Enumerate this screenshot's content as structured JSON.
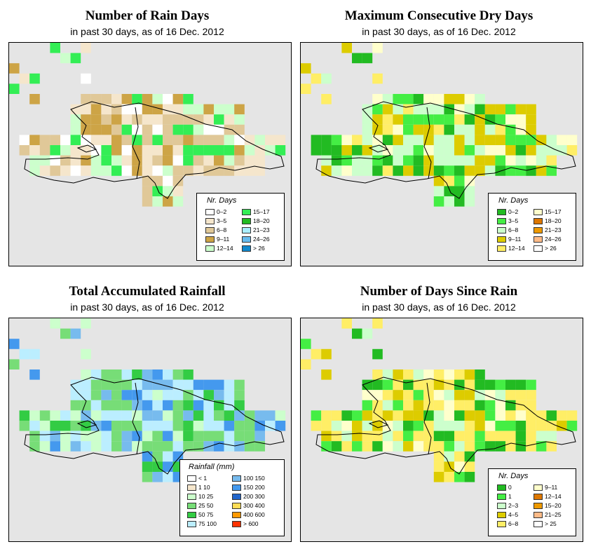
{
  "panels": [
    {
      "id": "rain-days",
      "title": "Number of Rain Days",
      "subtitle": "in past 30 days, as of  16 Dec. 2012",
      "legend": {
        "title": "Nr. Days",
        "items": [
          {
            "label": "0–2",
            "color": "#ffffff"
          },
          {
            "label": "3–5",
            "color": "#f5e6cc"
          },
          {
            "label": "6–8",
            "color": "#e0c898"
          },
          {
            "label": "9–11",
            "color": "#cda446"
          },
          {
            "label": "12–14",
            "color": "#ccffcc"
          },
          {
            "label": "15–17",
            "color": "#33ee55"
          },
          {
            "label": "18–20",
            "color": "#22bb22"
          },
          {
            "label": "21–23",
            "color": "#aaeeff"
          },
          {
            "label": "24–26",
            "color": "#66bbee"
          },
          {
            "label": "> 26",
            "color": "#1188cc"
          }
        ]
      }
    },
    {
      "id": "dry-days",
      "title": "Maximum Consecutive Dry Days",
      "subtitle": "in past 30 days, as of  16 Dec. 2012",
      "legend": {
        "title": "Nr. Days",
        "items": [
          {
            "label": "0–2",
            "color": "#22bb22"
          },
          {
            "label": "3–5",
            "color": "#44ee44"
          },
          {
            "label": "6–8",
            "color": "#ccffcc"
          },
          {
            "label": "9–11",
            "color": "#ddcc00"
          },
          {
            "label": "12–14",
            "color": "#ffee66"
          },
          {
            "label": "15–17",
            "color": "#ffffcc"
          },
          {
            "label": "18–20",
            "color": "#dd7700"
          },
          {
            "label": "21–23",
            "color": "#ee9900"
          },
          {
            "label": "24–26",
            "color": "#ffbb88"
          },
          {
            "label": "> 26",
            "color": "#ffffff"
          }
        ]
      }
    },
    {
      "id": "rainfall",
      "title": "Total Accumulated Rainfall",
      "subtitle": "in past 30 days, as of  16 Dec. 2012",
      "legend": {
        "title": "Rainfall (mm)",
        "items": [
          {
            "label": "< 1",
            "color": "#ffffff"
          },
          {
            "label": "1   10",
            "color": "#f5e6cc"
          },
          {
            "label": "10   25",
            "color": "#ccffcc"
          },
          {
            "label": "25   50",
            "color": "#77dd77"
          },
          {
            "label": "50   75",
            "color": "#33cc44"
          },
          {
            "label": "75  100",
            "color": "#bbeeff"
          },
          {
            "label": "100  150",
            "color": "#77bbee"
          },
          {
            "label": "150  200",
            "color": "#4499ee"
          },
          {
            "label": "200  300",
            "color": "#2266cc"
          },
          {
            "label": "300  400",
            "color": "#ffdd55"
          },
          {
            "label": "400  600",
            "color": "#ff9900"
          },
          {
            "label": "> 600",
            "color": "#ff3300"
          }
        ]
      }
    },
    {
      "id": "since-rain",
      "title": "Number of Days Since Rain",
      "subtitle": "in past 30 days, as of  16 Dec. 2012",
      "legend": {
        "title": "Nr. Days",
        "items": [
          {
            "label": "0",
            "color": "#22bb22"
          },
          {
            "label": "1",
            "color": "#44ee44"
          },
          {
            "label": "2–3",
            "color": "#ccffcc"
          },
          {
            "label": "4–5",
            "color": "#ddcc00"
          },
          {
            "label": "6–8",
            "color": "#ffee66"
          },
          {
            "label": "9–11",
            "color": "#ffffcc"
          },
          {
            "label": "12–14",
            "color": "#dd7700"
          },
          {
            "label": "15–20",
            "color": "#ee9900"
          },
          {
            "label": "21–25",
            "color": "#ffbb88"
          },
          {
            "label": "> 25",
            "color": "#ffffff"
          }
        ]
      }
    }
  ]
}
